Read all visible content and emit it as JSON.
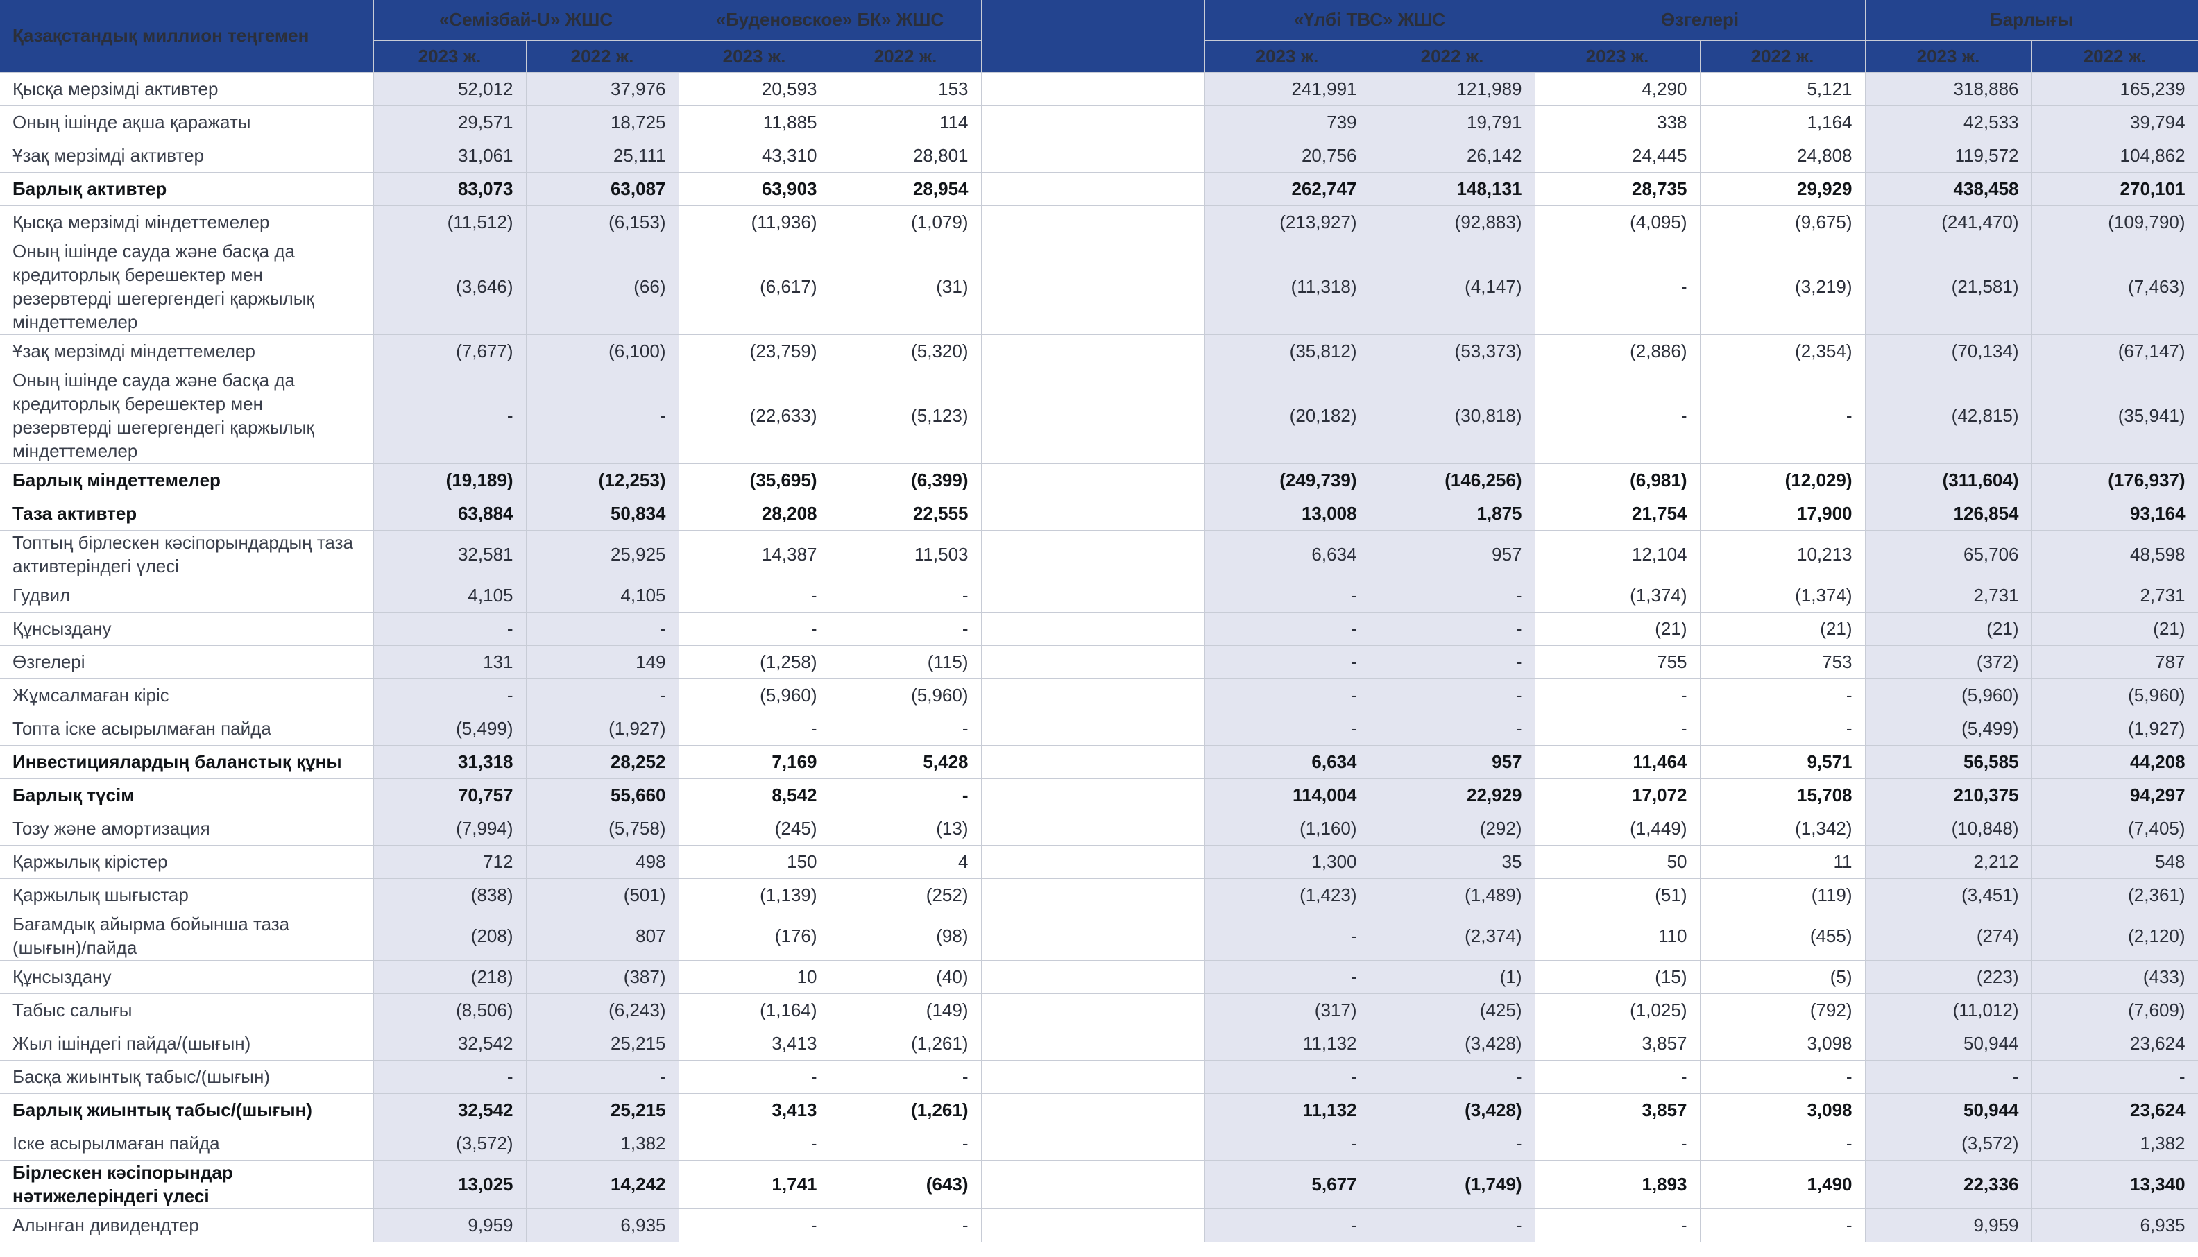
{
  "table": {
    "header_label": "Қазақстандық миллион теңгемен",
    "companies": [
      "«Семізбай-U» ЖШС",
      "«Буденовское» БК» ЖШС",
      "",
      "«Үлбі ТВС» ЖШС",
      "Өзгелері",
      "Барлығы"
    ],
    "years": [
      "2023 ж.",
      "2022 ж."
    ],
    "rows": [
      {
        "label": "Қысқа мерзімді активтер",
        "bold": false,
        "h": 48,
        "v": [
          "52,012",
          "37,976",
          "20,593",
          "153",
          "241,991",
          "121,989",
          "4,290",
          "5,121",
          "318,886",
          "165,239"
        ]
      },
      {
        "label": "Оның ішінде ақша қаражаты",
        "bold": false,
        "h": 48,
        "v": [
          "29,571",
          "18,725",
          "11,885",
          "114",
          "739",
          "19,791",
          "338",
          "1,164",
          "42,533",
          "39,794"
        ]
      },
      {
        "label": "Ұзақ мерзімді активтер",
        "bold": false,
        "h": 48,
        "v": [
          "31,061",
          "25,111",
          "43,310",
          "28,801",
          "20,756",
          "26,142",
          "24,445",
          "24,808",
          "119,572",
          "104,862"
        ]
      },
      {
        "label": "Барлық активтер",
        "bold": true,
        "h": 48,
        "v": [
          "83,073",
          "63,087",
          "63,903",
          "28,954",
          "262,747",
          "148,131",
          "28,735",
          "29,929",
          "438,458",
          "270,101"
        ]
      },
      {
        "label": "Қысқа мерзімді міндеттемелер",
        "bold": false,
        "h": 48,
        "v": [
          "(11,512)",
          "(6,153)",
          "(11,936)",
          "(1,079)",
          "(213,927)",
          "(92,883)",
          "(4,095)",
          "(9,675)",
          "(241,470)",
          "(109,790)"
        ]
      },
      {
        "label": "Оның ішінде сауда және басқа да кредиторлық берешектер мен резервтерді шегергендегі қаржылық міндеттемелер",
        "bold": false,
        "h": 138,
        "v": [
          "(3,646)",
          "(66)",
          "(6,617)",
          "(31)",
          "(11,318)",
          "(4,147)",
          "-",
          "(3,219)",
          "(21,581)",
          "(7,463)"
        ]
      },
      {
        "label": "Ұзақ мерзімді міндеттемелер",
        "bold": false,
        "h": 48,
        "v": [
          "(7,677)",
          "(6,100)",
          "(23,759)",
          "(5,320)",
          "(35,812)",
          "(53,373)",
          "(2,886)",
          "(2,354)",
          "(70,134)",
          "(67,147)"
        ]
      },
      {
        "label": "Оның ішінде сауда және басқа да кредиторлық берешектер мен резервтерді шегергендегі қаржылық міндеттемелер",
        "bold": false,
        "h": 138,
        "v": [
          "-",
          "-",
          "(22,633)",
          "(5,123)",
          "(20,182)",
          "(30,818)",
          "-",
          "-",
          "(42,815)",
          "(35,941)"
        ]
      },
      {
        "label": "Барлық міндеттемелер",
        "bold": true,
        "h": 48,
        "v": [
          "(19,189)",
          "(12,253)",
          "(35,695)",
          "(6,399)",
          "(249,739)",
          "(146,256)",
          "(6,981)",
          "(12,029)",
          "(311,604)",
          "(176,937)"
        ]
      },
      {
        "label": "Таза активтер",
        "bold": true,
        "h": 48,
        "v": [
          "63,884",
          "50,834",
          "28,208",
          "22,555",
          "13,008",
          "1,875",
          "21,754",
          "17,900",
          "126,854",
          "93,164"
        ]
      },
      {
        "label": "Топтың бірлескен кәсіпорындардың таза активтеріндегі үлесі",
        "bold": false,
        "h": 70,
        "v": [
          "32,581",
          "25,925",
          "14,387",
          "11,503",
          "6,634",
          "957",
          "12,104",
          "10,213",
          "65,706",
          "48,598"
        ]
      },
      {
        "label": "Гудвил",
        "bold": false,
        "h": 48,
        "v": [
          "4,105",
          "4,105",
          "-",
          "-",
          "-",
          "-",
          "(1,374)",
          "(1,374)",
          "2,731",
          "2,731"
        ]
      },
      {
        "label": "Құнсыздану",
        "bold": false,
        "h": 48,
        "v": [
          "-",
          "-",
          "-",
          "-",
          "-",
          "-",
          "(21)",
          "(21)",
          "(21)",
          "(21)"
        ]
      },
      {
        "label": "Өзгелері",
        "bold": false,
        "h": 48,
        "v": [
          "131",
          "149",
          "(1,258)",
          "(115)",
          "-",
          "-",
          "755",
          "753",
          "(372)",
          "787"
        ]
      },
      {
        "label": "Жұмсалмаған кіріс",
        "bold": false,
        "h": 48,
        "v": [
          "-",
          "-",
          "(5,960)",
          "(5,960)",
          "-",
          "-",
          "-",
          "-",
          "(5,960)",
          "(5,960)"
        ]
      },
      {
        "label": "Топта іске асырылмаған пайда",
        "bold": false,
        "h": 48,
        "v": [
          "(5,499)",
          "(1,927)",
          "-",
          "-",
          "-",
          "-",
          "-",
          "-",
          "(5,499)",
          "(1,927)"
        ]
      },
      {
        "label": "Инвестициялардың баланстық құны",
        "bold": true,
        "h": 48,
        "v": [
          "31,318",
          "28,252",
          "7,169",
          "5,428",
          "6,634",
          "957",
          "11,464",
          "9,571",
          "56,585",
          "44,208"
        ]
      },
      {
        "label": "Барлық түсім",
        "bold": true,
        "h": 48,
        "v": [
          "70,757",
          "55,660",
          "8,542",
          "-",
          "114,004",
          "22,929",
          "17,072",
          "15,708",
          "210,375",
          "94,297"
        ]
      },
      {
        "label": "Тозу және амортизация",
        "bold": false,
        "h": 48,
        "v": [
          "(7,994)",
          "(5,758)",
          "(245)",
          "(13)",
          "(1,160)",
          "(292)",
          "(1,449)",
          "(1,342)",
          "(10,848)",
          "(7,405)"
        ]
      },
      {
        "label": "Қаржылық кірістер",
        "bold": false,
        "h": 48,
        "v": [
          "712",
          "498",
          "150",
          "4",
          "1,300",
          "35",
          "50",
          "11",
          "2,212",
          "548"
        ]
      },
      {
        "label": "Қаржылық шығыстар",
        "bold": false,
        "h": 48,
        "v": [
          "(838)",
          "(501)",
          "(1,139)",
          "(252)",
          "(1,423)",
          "(1,489)",
          "(51)",
          "(119)",
          "(3,451)",
          "(2,361)"
        ]
      },
      {
        "label": "Бағамдық айырма бойынша таза (шығын)/пайда",
        "bold": false,
        "h": 70,
        "v": [
          "(208)",
          "807",
          "(176)",
          "(98)",
          "-",
          "(2,374)",
          "110",
          "(455)",
          "(274)",
          "(2,120)"
        ]
      },
      {
        "label": "Құнсыздану",
        "bold": false,
        "h": 48,
        "v": [
          "(218)",
          "(387)",
          "10",
          "(40)",
          "-",
          "(1)",
          "(15)",
          "(5)",
          "(223)",
          "(433)"
        ]
      },
      {
        "label": "Табыс салығы",
        "bold": false,
        "h": 48,
        "v": [
          "(8,506)",
          "(6,243)",
          "(1,164)",
          "(149)",
          "(317)",
          "(425)",
          "(1,025)",
          "(792)",
          "(11,012)",
          "(7,609)"
        ]
      },
      {
        "label": "Жыл ішіндегі пайда/(шығын)",
        "bold": false,
        "h": 48,
        "v": [
          "32,542",
          "25,215",
          "3,413",
          "(1,261)",
          "11,132",
          "(3,428)",
          "3,857",
          "3,098",
          "50,944",
          "23,624"
        ]
      },
      {
        "label": "Басқа жиынтық табыс/(шығын)",
        "bold": false,
        "h": 48,
        "v": [
          "-",
          "-",
          "-",
          "-",
          "-",
          "-",
          "-",
          "-",
          "-",
          "-"
        ]
      },
      {
        "label": "Барлық жиынтық табыс/(шығын)",
        "bold": true,
        "h": 48,
        "v": [
          "32,542",
          "25,215",
          "3,413",
          "(1,261)",
          "11,132",
          "(3,428)",
          "3,857",
          "3,098",
          "50,944",
          "23,624"
        ]
      },
      {
        "label": "Іске асырылмаған пайда",
        "bold": false,
        "h": 48,
        "v": [
          "(3,572)",
          "1,382",
          "-",
          "-",
          "-",
          "-",
          "-",
          "-",
          "(3,572)",
          "1,382"
        ]
      },
      {
        "label": "Бірлескен кәсіпорындар нәтижелеріндегі үлесі",
        "bold": true,
        "h": 70,
        "v": [
          "13,025",
          "14,242",
          "1,741",
          "(643)",
          "5,677",
          "(1,749)",
          "1,893",
          "1,490",
          "22,336",
          "13,340"
        ]
      },
      {
        "label": "Алынған дивидендтер",
        "bold": false,
        "h": 48,
        "v": [
          "9,959",
          "6,935",
          "-",
          "-",
          "-",
          "-",
          "-",
          "-",
          "9,959",
          "6,935"
        ]
      }
    ]
  }
}
